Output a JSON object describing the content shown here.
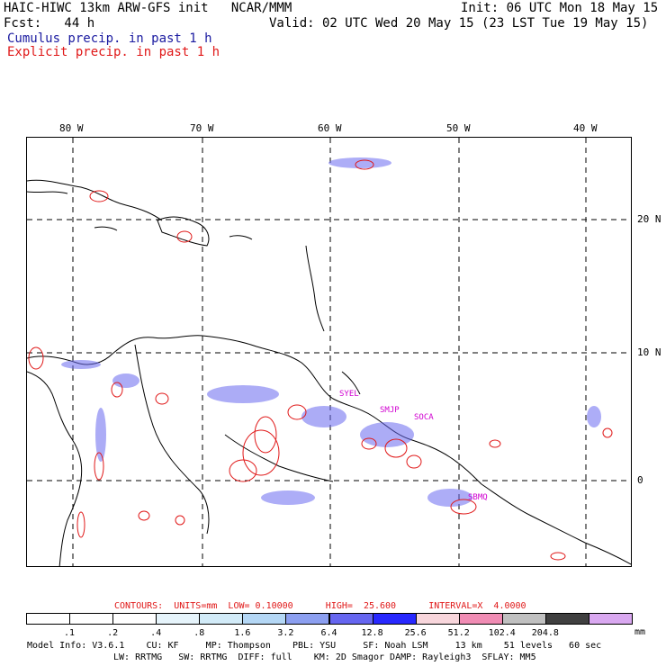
{
  "header": {
    "model_title": "HAIC-HIWC 13km ARW-GFS init   NCAR/MMM",
    "init": "Init: 06 UTC Mon 18 May 15",
    "fcst": "Fcst:   44 h",
    "valid": "Valid: 02 UTC Wed 20 May 15 (23 LST Tue 19 May 15)",
    "cumulus_label": "Cumulus precip. in past 1 h",
    "explicit_label": "Explicit precip. in past 1 h",
    "cumulus_color": "#1a1aa0",
    "explicit_color": "#e01818"
  },
  "map": {
    "lon_labels": [
      "80 W",
      "70 W",
      "60 W",
      "50 W",
      "40 W"
    ],
    "lat_labels": [
      "20 N",
      "10 N",
      "0"
    ],
    "station_labels": [
      "SYEL",
      "SMJP",
      "SOCA",
      "SBMQ"
    ],
    "station_color": "#d000d0"
  },
  "contour_info": {
    "text": "CONTOURS:  UNITS=mm  LOW= 0.10000      HIGH=  25.600      INTERVAL=X  4.0000"
  },
  "colorbar": {
    "ticks": [
      ".1",
      ".2",
      ".4",
      ".8",
      "1.6",
      "3.2",
      "6.4",
      "12.8",
      "25.6",
      "51.2",
      "102.4",
      "204.8"
    ],
    "unit": "mm",
    "colors": [
      "#ffffff",
      "#ffffff",
      "#ffffff",
      "#e6f4fb",
      "#d2ebf8",
      "#b4d7f5",
      "#8c9ff0",
      "#6666f0",
      "#2828ff",
      "#f8d6dc",
      "#f08cb4",
      "#c0c0c0",
      "#404040",
      "#d9a8f0"
    ]
  },
  "footer": {
    "line1": "Model Info: V3.6.1    CU: KF     MP: Thompson    PBL: YSU     SF: Noah LSM     13 km    51 levels   60 sec",
    "line2": "LW: RRTMG   SW: RRTMG  DIFF: full    KM: 2D Smagor DAMP: Rayleigh3  SFLAY: MM5"
  }
}
